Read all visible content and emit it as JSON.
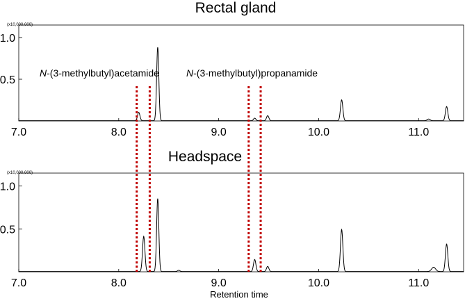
{
  "chart_data": [
    {
      "type": "line",
      "title": "Rectal gland",
      "scale_note": "(x10,000,000)",
      "xlabel": "",
      "ylabel": "",
      "xlim": [
        7.0,
        11.45
      ],
      "ylim": [
        0,
        1.15
      ],
      "x_ticks": [
        "7.0",
        "8.0",
        "9.0",
        "10.0",
        "11.0"
      ],
      "y_ticks": [
        "0.5",
        "1.0"
      ],
      "grid": false,
      "peaks": [
        {
          "x": 8.2,
          "y": 0.1,
          "w": 0.012
        },
        {
          "x": 8.39,
          "y": 0.88,
          "w": 0.011
        },
        {
          "x": 9.36,
          "y": 0.03,
          "w": 0.012
        },
        {
          "x": 9.49,
          "y": 0.06,
          "w": 0.012
        },
        {
          "x": 10.23,
          "y": 0.25,
          "w": 0.012
        },
        {
          "x": 11.1,
          "y": 0.02,
          "w": 0.015
        },
        {
          "x": 11.28,
          "y": 0.17,
          "w": 0.012
        }
      ],
      "annotations": [
        {
          "italic": "N",
          "text": "-(3-methylbutyl)acetamide"
        },
        {
          "italic": "N",
          "text": "-(3-methylbutyl)propanamide"
        }
      ],
      "marker_lines": [
        8.18,
        8.31,
        9.3,
        9.42
      ]
    },
    {
      "type": "line",
      "title": "Headspace",
      "scale_note": "(x10,000,000)",
      "xlabel": "Retention time",
      "ylabel": "",
      "xlim": [
        7.0,
        11.45
      ],
      "ylim": [
        0,
        1.15
      ],
      "x_ticks": [
        "7.0",
        "8.0",
        "9.0",
        "10.0",
        "11.0"
      ],
      "y_ticks": [
        "0.5",
        "1.0"
      ],
      "grid": false,
      "peaks": [
        {
          "x": 8.25,
          "y": 0.41,
          "w": 0.012
        },
        {
          "x": 8.39,
          "y": 0.85,
          "w": 0.011
        },
        {
          "x": 8.6,
          "y": 0.015,
          "w": 0.012
        },
        {
          "x": 9.36,
          "y": 0.14,
          "w": 0.012
        },
        {
          "x": 9.49,
          "y": 0.06,
          "w": 0.012
        },
        {
          "x": 10.23,
          "y": 0.49,
          "w": 0.012
        },
        {
          "x": 11.15,
          "y": 0.05,
          "w": 0.02
        },
        {
          "x": 11.28,
          "y": 0.32,
          "w": 0.012
        }
      ],
      "marker_lines": [
        8.18,
        8.31,
        9.3,
        9.42
      ]
    }
  ],
  "colors": {
    "trace": "#000000",
    "marker": "#c00000"
  }
}
